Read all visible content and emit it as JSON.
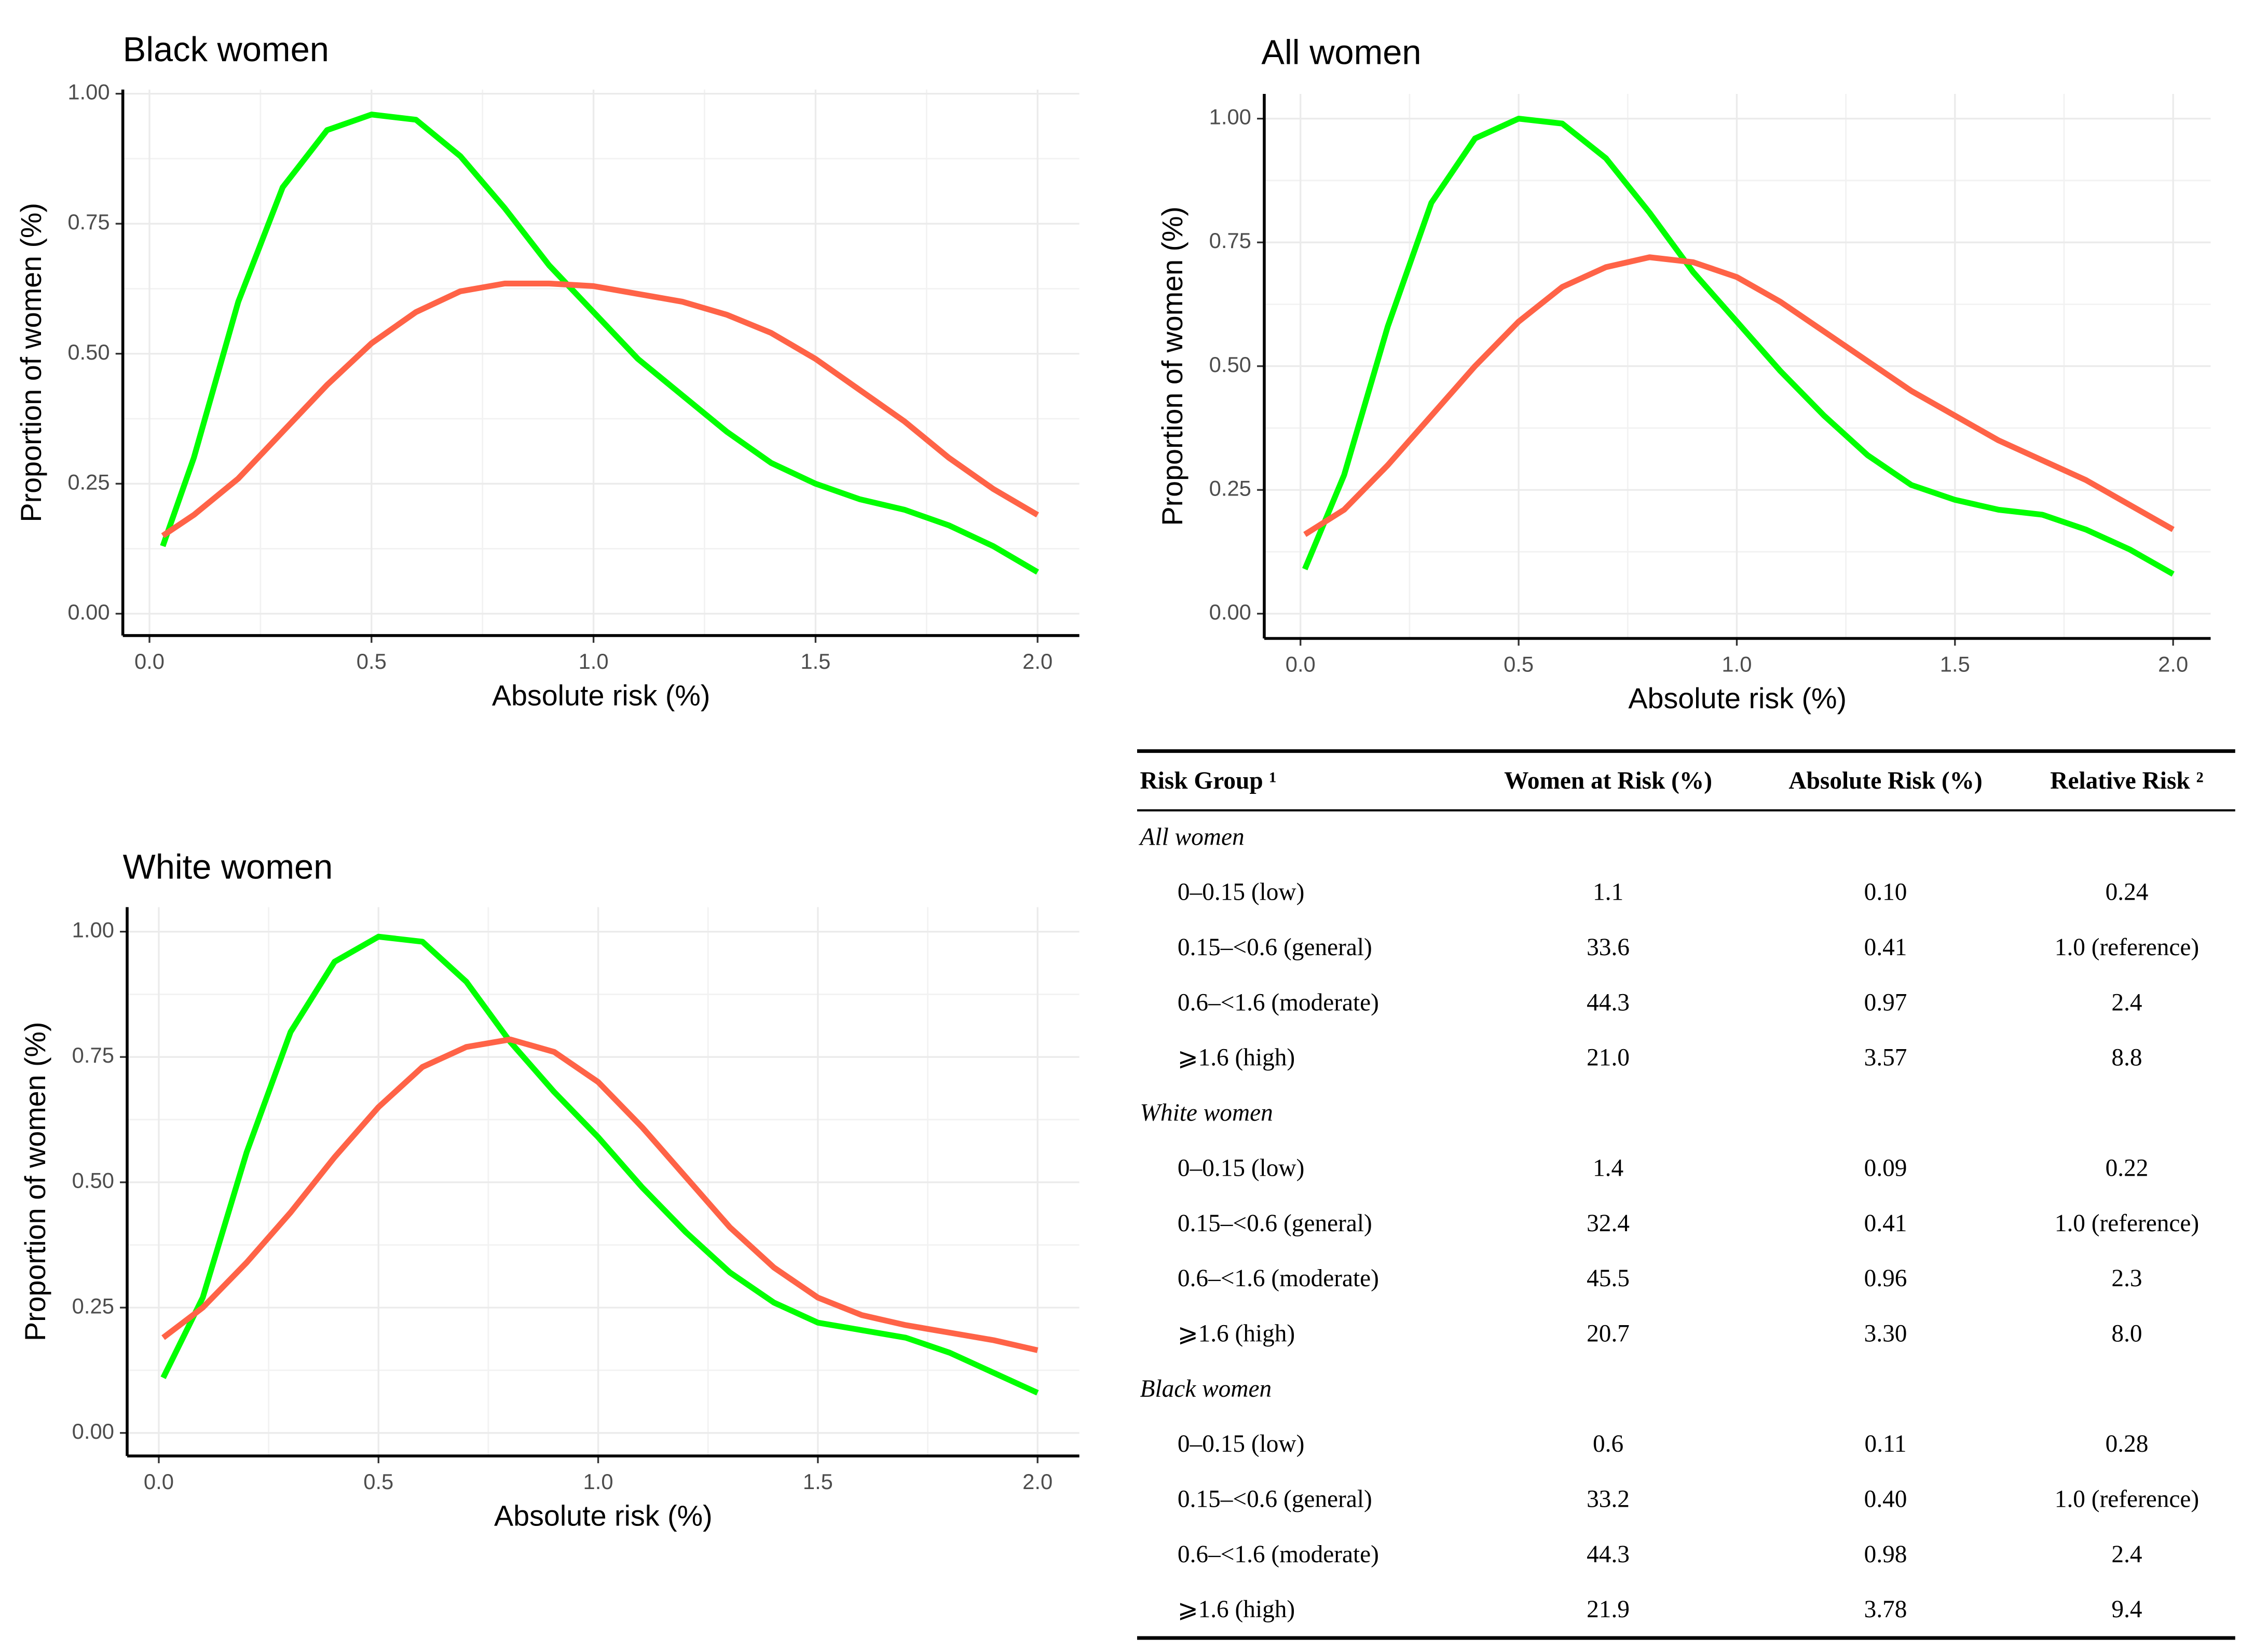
{
  "chart_data": [
    {
      "type": "line",
      "title": "Black women",
      "xlabel": "Absolute risk (%)",
      "ylabel": "Proportion of women (%)",
      "x": [
        0.03,
        0.1,
        0.2,
        0.3,
        0.4,
        0.5,
        0.6,
        0.7,
        0.8,
        0.9,
        1.0,
        1.1,
        1.2,
        1.3,
        1.4,
        1.5,
        1.6,
        1.7,
        1.8,
        1.9,
        2.0
      ],
      "series": [
        {
          "color": "#00ff00",
          "values": [
            0.13,
            0.3,
            0.6,
            0.82,
            0.93,
            0.96,
            0.95,
            0.88,
            0.78,
            0.67,
            0.58,
            0.49,
            0.42,
            0.35,
            0.29,
            0.25,
            0.22,
            0.2,
            0.17,
            0.13,
            0.08
          ]
        },
        {
          "color": "#ff6347",
          "values": [
            0.15,
            0.19,
            0.26,
            0.35,
            0.44,
            0.52,
            0.58,
            0.62,
            0.635,
            0.635,
            0.63,
            0.615,
            0.6,
            0.575,
            0.54,
            0.49,
            0.43,
            0.37,
            0.3,
            0.24,
            0.19
          ]
        }
      ],
      "xlim": [
        -0.06,
        2.094
      ],
      "ylim": [
        -0.042,
        1.008
      ],
      "xticks": [
        {
          "value": 0,
          "label": "0.0"
        },
        0.5,
        {
          "value": 1,
          "label": "1.0"
        },
        1.5,
        {
          "value": 2,
          "label": "2.0"
        }
      ],
      "yticks": [
        {
          "value": 0,
          "label": "0.00"
        },
        {
          "value": 0.25,
          "label": "0.25"
        },
        {
          "value": 0.5,
          "label": "0.50"
        },
        {
          "value": 0.75,
          "label": "0.75"
        },
        {
          "value": 1,
          "label": "1.00"
        }
      ],
      "grid": true
    },
    {
      "type": "line",
      "title": "All women",
      "xlabel": "Absolute risk (%)",
      "ylabel": "Proportion of women (%)",
      "x": [
        0.01,
        0.1,
        0.2,
        0.3,
        0.4,
        0.5,
        0.6,
        0.7,
        0.8,
        0.9,
        1.0,
        1.1,
        1.2,
        1.3,
        1.4,
        1.5,
        1.6,
        1.7,
        1.8,
        1.9,
        2.0
      ],
      "series": [
        {
          "color": "#00ff00",
          "values": [
            0.09,
            0.28,
            0.58,
            0.83,
            0.96,
            1.0,
            0.99,
            0.92,
            0.81,
            0.69,
            0.59,
            0.49,
            0.4,
            0.32,
            0.26,
            0.23,
            0.21,
            0.2,
            0.17,
            0.13,
            0.08
          ]
        },
        {
          "color": "#ff6347",
          "values": [
            0.16,
            0.21,
            0.3,
            0.4,
            0.5,
            0.59,
            0.66,
            0.7,
            0.72,
            0.71,
            0.68,
            0.63,
            0.57,
            0.51,
            0.45,
            0.4,
            0.35,
            0.31,
            0.27,
            0.22,
            0.17
          ]
        }
      ],
      "xlim": [
        -0.083,
        2.086
      ],
      "ylim": [
        -0.05,
        1.05
      ],
      "xticks": [
        {
          "value": 0,
          "label": "0.0"
        },
        0.5,
        {
          "value": 1,
          "label": "1.0"
        },
        1.5,
        {
          "value": 2,
          "label": "2.0"
        }
      ],
      "yticks": [
        {
          "value": 0,
          "label": "0.00"
        },
        {
          "value": 0.25,
          "label": "0.25"
        },
        {
          "value": 0.5,
          "label": "0.50"
        },
        {
          "value": 0.75,
          "label": "0.75"
        },
        {
          "value": 1,
          "label": "1.00"
        }
      ],
      "grid": true
    },
    {
      "type": "line",
      "title": "White women",
      "xlabel": "Absolute risk (%)",
      "ylabel": "Proportion of women (%)",
      "x": [
        0.01,
        0.1,
        0.2,
        0.3,
        0.4,
        0.5,
        0.6,
        0.7,
        0.8,
        0.9,
        1.0,
        1.1,
        1.2,
        1.3,
        1.4,
        1.5,
        1.6,
        1.7,
        1.8,
        1.9,
        2.0
      ],
      "series": [
        {
          "color": "#00ff00",
          "values": [
            0.11,
            0.27,
            0.56,
            0.8,
            0.94,
            0.99,
            0.98,
            0.9,
            0.78,
            0.68,
            0.59,
            0.49,
            0.4,
            0.32,
            0.26,
            0.22,
            0.205,
            0.19,
            0.16,
            0.12,
            0.08
          ]
        },
        {
          "color": "#ff6347",
          "values": [
            0.19,
            0.25,
            0.34,
            0.44,
            0.55,
            0.65,
            0.73,
            0.77,
            0.785,
            0.76,
            0.7,
            0.61,
            0.51,
            0.41,
            0.33,
            0.27,
            0.235,
            0.215,
            0.2,
            0.185,
            0.165
          ]
        }
      ],
      "xlim": [
        -0.072,
        2.095
      ],
      "ylim": [
        -0.046,
        1.049
      ],
      "xticks": [
        {
          "value": 0,
          "label": "0.0"
        },
        0.5,
        {
          "value": 1,
          "label": "1.0"
        },
        1.5,
        {
          "value": 2,
          "label": "2.0"
        }
      ],
      "yticks": [
        {
          "value": 0,
          "label": "0.00"
        },
        {
          "value": 0.25,
          "label": "0.25"
        },
        {
          "value": 0.5,
          "label": "0.50"
        },
        {
          "value": 0.75,
          "label": "0.75"
        },
        {
          "value": 1,
          "label": "1.00"
        }
      ],
      "grid": true
    }
  ],
  "table": {
    "headers": [
      "Risk Group ¹",
      "Women at Risk (%)",
      "Absolute Risk (%)",
      "Relative Risk ²"
    ],
    "sections": [
      {
        "label": "All women",
        "rows": [
          [
            "0–0.15 (low)",
            "1.1",
            "0.10",
            "0.24"
          ],
          [
            "0.15–<0.6 (general)",
            "33.6",
            "0.41",
            "1.0 (reference)"
          ],
          [
            "0.6–<1.6 (moderate)",
            "44.3",
            "0.97",
            "2.4"
          ],
          [
            "⩾1.6 (high)",
            "21.0",
            "3.57",
            "8.8"
          ]
        ]
      },
      {
        "label": "White women",
        "rows": [
          [
            "0–0.15 (low)",
            "1.4",
            "0.09",
            "0.22"
          ],
          [
            "0.15–<0.6 (general)",
            "32.4",
            "0.41",
            "1.0 (reference)"
          ],
          [
            "0.6–<1.6 (moderate)",
            "45.5",
            "0.96",
            "2.3"
          ],
          [
            "⩾1.6 (high)",
            "20.7",
            "3.30",
            "8.0"
          ]
        ]
      },
      {
        "label": "Black women",
        "rows": [
          [
            "0–0.15 (low)",
            "0.6",
            "0.11",
            "0.28"
          ],
          [
            "0.15–<0.6 (general)",
            "33.2",
            "0.40",
            "1.0 (reference)"
          ],
          [
            "0.6–<1.6 (moderate)",
            "44.3",
            "0.98",
            "2.4"
          ],
          [
            "⩾1.6 (high)",
            "21.9",
            "3.78",
            "9.4"
          ]
        ]
      }
    ]
  }
}
